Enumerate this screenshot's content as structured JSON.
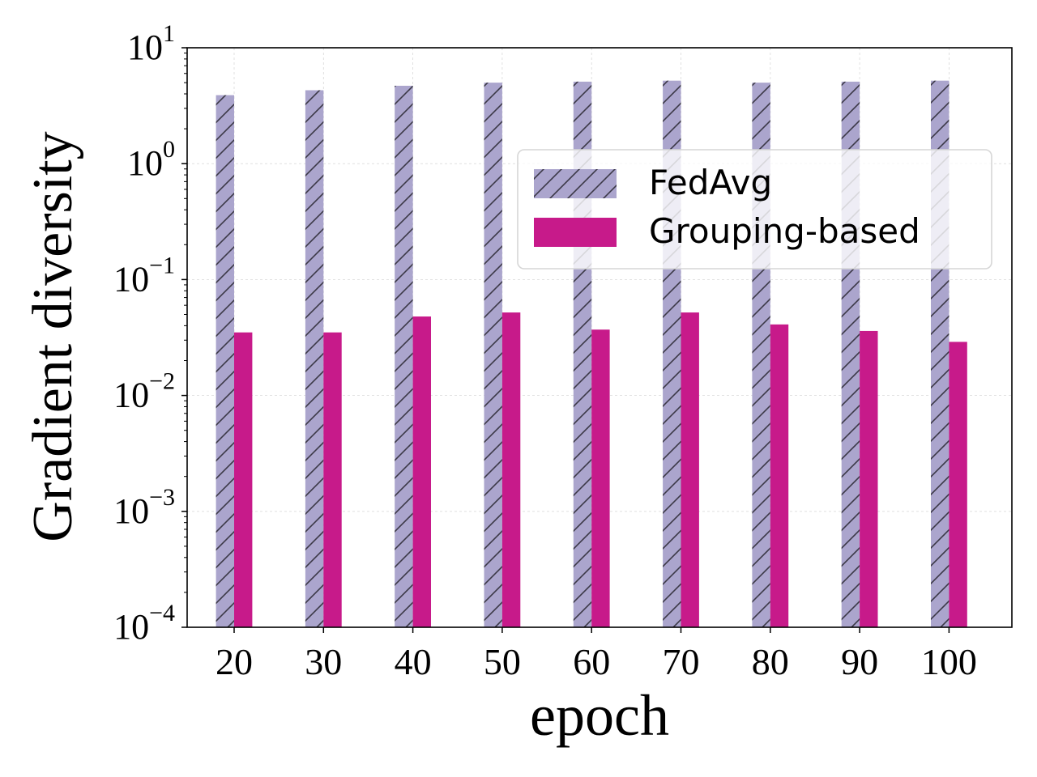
{
  "chart_data": {
    "type": "bar",
    "title": "",
    "xlabel": "epoch",
    "ylabel": "Gradient diversity",
    "yscale": "log",
    "ylim": [
      0.0001,
      10
    ],
    "y_ticks": [
      {
        "base": "10",
        "exp": "−4",
        "value": 0.0001
      },
      {
        "base": "10",
        "exp": "−3",
        "value": 0.001
      },
      {
        "base": "10",
        "exp": "−2",
        "value": 0.01
      },
      {
        "base": "10",
        "exp": "−1",
        "value": 0.1
      },
      {
        "base": "10",
        "exp": "0",
        "value": 1
      },
      {
        "base": "10",
        "exp": "1",
        "value": 10
      }
    ],
    "categories": [
      "20",
      "30",
      "40",
      "50",
      "60",
      "70",
      "80",
      "90",
      "100"
    ],
    "grid": true,
    "legend_position": "upper-right",
    "series": [
      {
        "name": "FedAvg",
        "color": "#aba5cd",
        "hatch": "diagonal",
        "hatch_color": "#3b3846",
        "values": [
          3.9,
          4.3,
          4.7,
          5.0,
          5.1,
          5.2,
          5.0,
          5.1,
          5.2
        ]
      },
      {
        "name": "Grouping-based",
        "color": "#c71a8a",
        "hatch": "none",
        "values": [
          0.035,
          0.035,
          0.048,
          0.052,
          0.037,
          0.052,
          0.041,
          0.036,
          0.029
        ]
      }
    ]
  }
}
